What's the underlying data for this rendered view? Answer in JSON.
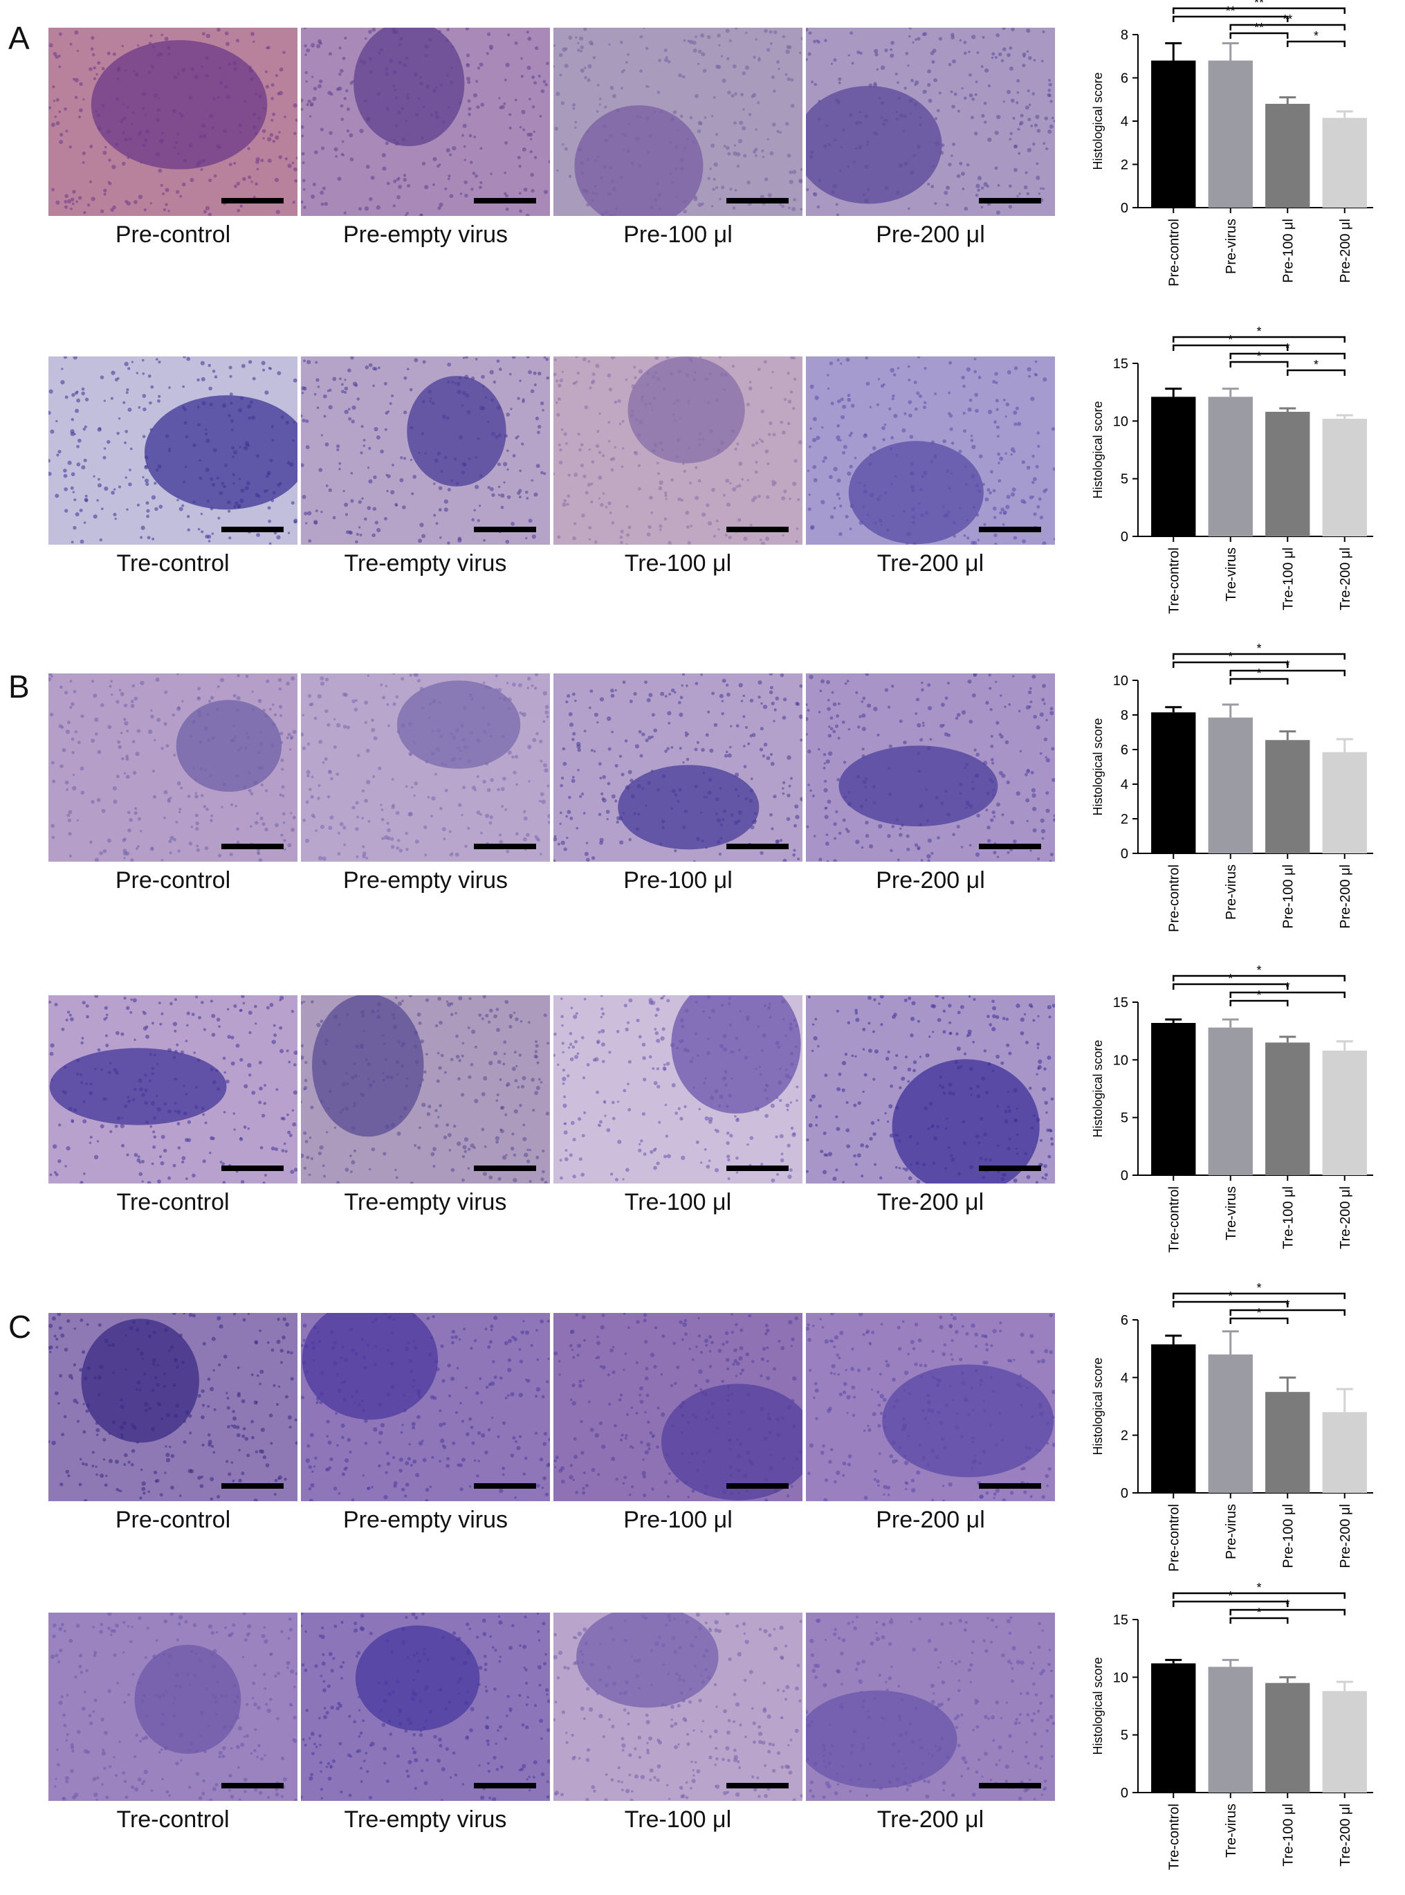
{
  "panels": [
    {
      "letter": "A",
      "rows": [
        {
          "captions": [
            "Pre-control",
            "Pre-empty virus",
            "Pre-100 μl",
            "Pre-200 μl"
          ],
          "tissue_colors": [
            "#b8829c",
            "#a989b7",
            "#a89bbb",
            "#a999c2"
          ],
          "lesion_colors": [
            "#6e3a8a",
            "#60418f",
            "#7a5ea4",
            "#5b4a9a"
          ]
        },
        {
          "captions": [
            "Tre-control",
            "Tre-empty virus",
            "Tre-100 μl",
            "Tre-200 μl"
          ],
          "tissue_colors": [
            "#c2bfdc",
            "#b6a4c8",
            "#c1a8c2",
            "#a59bcf"
          ],
          "lesion_colors": [
            "#3e3495",
            "#4a3d98",
            "#876fa8",
            "#5a4ca7"
          ]
        }
      ]
    },
    {
      "letter": "B",
      "rows": [
        {
          "captions": [
            "Pre-control",
            "Pre-empty virus",
            "Pre-100 μl",
            "Pre-200 μl"
          ],
          "tissue_colors": [
            "#b59fc9",
            "#b8a6cc",
            "#b3a1cb",
            "#a894c6"
          ],
          "lesion_colors": [
            "#7162a8",
            "#7a6aae",
            "#493d99",
            "#4d3f9c"
          ]
        },
        {
          "captions": [
            "Tre-control",
            "Tre-empty virus",
            "Tre-100 μl",
            "Tre-200 μl"
          ],
          "tissue_colors": [
            "#b8a1cc",
            "#ad9bbd",
            "#cdbfdc",
            "#a896c9"
          ],
          "lesion_colors": [
            "#44379b",
            "#5a4b96",
            "#6a55ad",
            "#3f3198"
          ]
        }
      ]
    },
    {
      "letter": "C",
      "rows": [
        {
          "captions": [
            "Pre-control",
            "Pre-empty virus",
            "Pre-100 μl",
            "Pre-200 μl"
          ],
          "tissue_colors": [
            "#8f79b5",
            "#8e76b9",
            "#8f72b4",
            "#9a80bf"
          ],
          "lesion_colors": [
            "#3b2c84",
            "#4c3aa0",
            "#54409e",
            "#5a48a5"
          ]
        },
        {
          "captions": [
            "Tre-control",
            "Tre-empty virus",
            "Tre-100 μl",
            "Tre-200 μl"
          ],
          "tissue_colors": [
            "#9a83be",
            "#8c75b9",
            "#b9a5cb",
            "#9a82bf"
          ],
          "lesion_colors": [
            "#6d58aa",
            "#4a3aa0",
            "#7561ad",
            "#6a54ab"
          ]
        }
      ]
    }
  ],
  "chart_data": [
    {
      "type": "bar",
      "ylabel": "Histological score",
      "categories": [
        "Pre-control",
        "Pre-virus",
        "Pre-100 μl",
        "Pre-200 μl"
      ],
      "values": [
        6.8,
        6.8,
        4.8,
        4.15
      ],
      "errors": [
        0.8,
        0.8,
        0.3,
        0.3
      ],
      "ylim": [
        0,
        8
      ],
      "yticks": [
        "0",
        "2",
        "4",
        "6",
        "8"
      ],
      "bar_colors": [
        "#000000",
        "#9b9ba3",
        "#7b7b7b",
        "#d2d2d2"
      ],
      "significance": [
        {
          "from": 0,
          "to": 3,
          "label": "**"
        },
        {
          "from": 0,
          "to": 2,
          "label": "**"
        },
        {
          "from": 1,
          "to": 3,
          "label": "**"
        },
        {
          "from": 1,
          "to": 2,
          "label": "**"
        },
        {
          "from": 2,
          "to": 3,
          "label": "*"
        }
      ]
    },
    {
      "type": "bar",
      "ylabel": "Histological score",
      "categories": [
        "Tre-control",
        "Tre-virus",
        "Tre-100 μl",
        "Tre-200 μl"
      ],
      "values": [
        12.1,
        12.1,
        10.8,
        10.2
      ],
      "errors": [
        0.7,
        0.7,
        0.3,
        0.3
      ],
      "ylim": [
        0,
        15
      ],
      "yticks": [
        "0",
        "5",
        "10",
        "15"
      ],
      "bar_colors": [
        "#000000",
        "#9b9ba3",
        "#7b7b7b",
        "#d2d2d2"
      ],
      "significance": [
        {
          "from": 0,
          "to": 3,
          "label": "*"
        },
        {
          "from": 0,
          "to": 2,
          "label": "*"
        },
        {
          "from": 1,
          "to": 3,
          "label": "*"
        },
        {
          "from": 1,
          "to": 2,
          "label": "*"
        },
        {
          "from": 2,
          "to": 3,
          "label": "*"
        }
      ]
    },
    {
      "type": "bar",
      "ylabel": "Histological score",
      "categories": [
        "Pre-control",
        "Pre-virus",
        "Pre-100 μl",
        "Pre-200 μl"
      ],
      "values": [
        8.15,
        7.85,
        6.55,
        5.85
      ],
      "errors": [
        0.3,
        0.75,
        0.5,
        0.75
      ],
      "ylim": [
        0,
        10
      ],
      "yticks": [
        "0",
        "2",
        "4",
        "6",
        "8",
        "10"
      ],
      "bar_colors": [
        "#000000",
        "#9b9ba3",
        "#7b7b7b",
        "#d2d2d2"
      ],
      "significance": [
        {
          "from": 0,
          "to": 3,
          "label": "*"
        },
        {
          "from": 0,
          "to": 2,
          "label": "*"
        },
        {
          "from": 1,
          "to": 3,
          "label": "*"
        },
        {
          "from": 1,
          "to": 2,
          "label": "*"
        }
      ]
    },
    {
      "type": "bar",
      "ylabel": "Histological score",
      "categories": [
        "Tre-control",
        "Tre-virus",
        "Tre-100 μl",
        "Tre-200 μl"
      ],
      "values": [
        13.2,
        12.8,
        11.5,
        10.8
      ],
      "errors": [
        0.3,
        0.7,
        0.5,
        0.8
      ],
      "ylim": [
        0,
        15
      ],
      "yticks": [
        "0",
        "5",
        "10",
        "15"
      ],
      "bar_colors": [
        "#000000",
        "#9b9ba3",
        "#7b7b7b",
        "#d2d2d2"
      ],
      "significance": [
        {
          "from": 0,
          "to": 3,
          "label": "*"
        },
        {
          "from": 0,
          "to": 2,
          "label": "*"
        },
        {
          "from": 1,
          "to": 3,
          "label": "*"
        },
        {
          "from": 1,
          "to": 2,
          "label": "*"
        }
      ]
    },
    {
      "type": "bar",
      "ylabel": "Histological score",
      "categories": [
        "Pre-control",
        "Pre-virus",
        "Pre-100 μl",
        "Pre-200 μl"
      ],
      "values": [
        5.15,
        4.8,
        3.5,
        2.8
      ],
      "errors": [
        0.3,
        0.8,
        0.5,
        0.8
      ],
      "ylim": [
        0,
        6
      ],
      "yticks": [
        "0",
        "2",
        "4",
        "6"
      ],
      "bar_colors": [
        "#000000",
        "#9b9ba3",
        "#7b7b7b",
        "#d2d2d2"
      ],
      "significance": [
        {
          "from": 0,
          "to": 3,
          "label": "*"
        },
        {
          "from": 0,
          "to": 2,
          "label": "*"
        },
        {
          "from": 1,
          "to": 3,
          "label": "*"
        },
        {
          "from": 1,
          "to": 2,
          "label": "*"
        }
      ]
    },
    {
      "type": "bar",
      "ylabel": "Histological score",
      "categories": [
        "Tre-control",
        "Tre-virus",
        "Tre-100 μl",
        "Tre-200 μl"
      ],
      "values": [
        11.2,
        10.9,
        9.5,
        8.8
      ],
      "errors": [
        0.3,
        0.6,
        0.5,
        0.8
      ],
      "ylim": [
        0,
        15
      ],
      "yticks": [
        "0",
        "5",
        "10",
        "15"
      ],
      "bar_colors": [
        "#000000",
        "#9b9ba3",
        "#7b7b7b",
        "#d2d2d2"
      ],
      "significance": [
        {
          "from": 0,
          "to": 3,
          "label": "*"
        },
        {
          "from": 0,
          "to": 2,
          "label": "*"
        },
        {
          "from": 1,
          "to": 3,
          "label": "*"
        },
        {
          "from": 1,
          "to": 2,
          "label": "*"
        }
      ]
    }
  ]
}
